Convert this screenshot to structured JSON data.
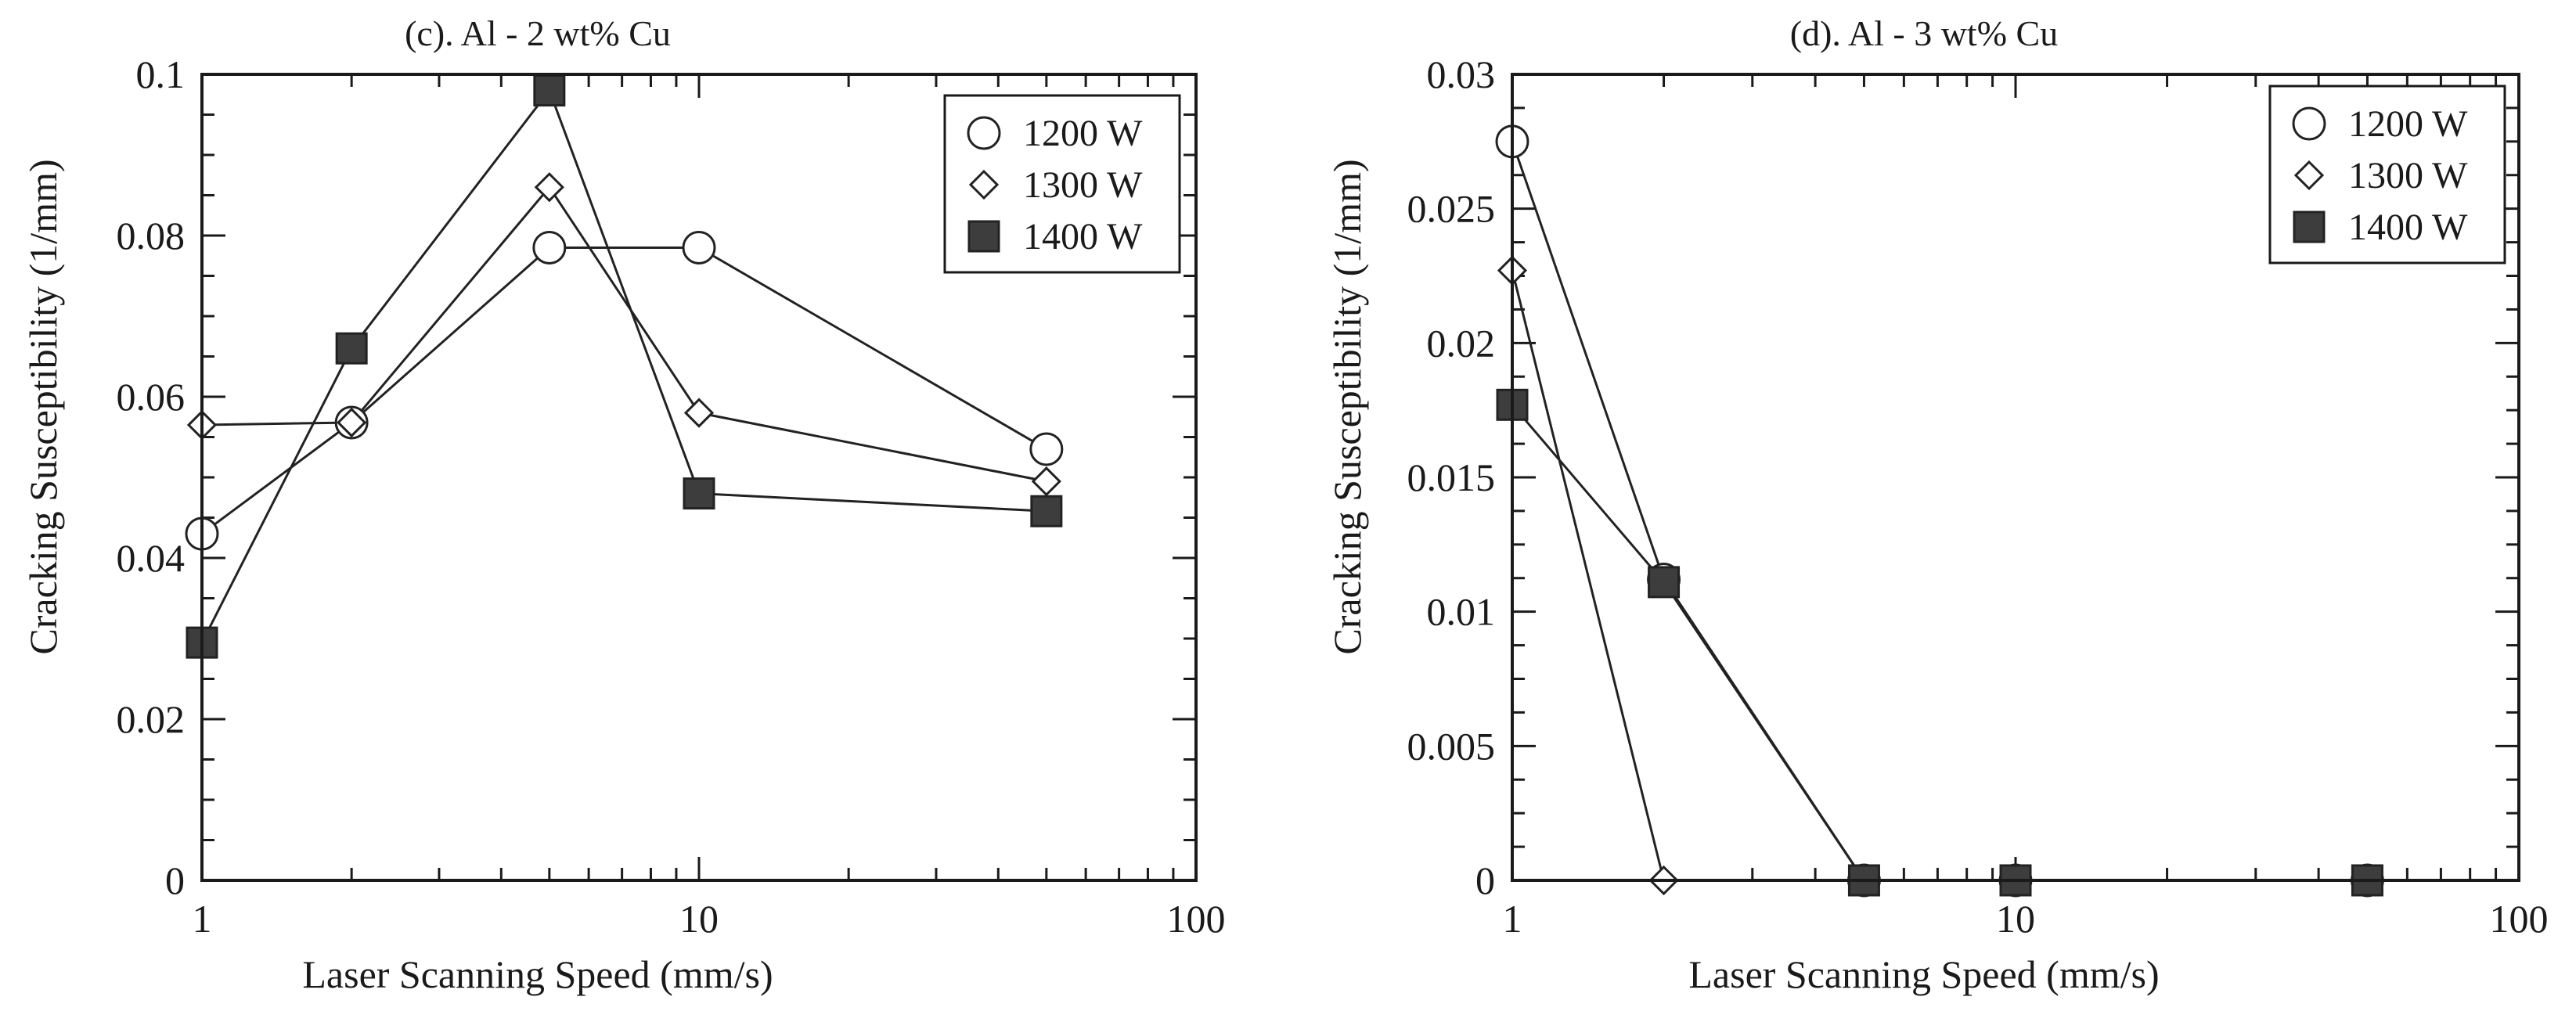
{
  "chart_data": [
    {
      "type": "line",
      "id": "panel-c",
      "title": "(c). Al - 2 wt% Cu",
      "xlabel": "Laser Scanning Speed (mm/s)",
      "ylabel": "Cracking Susceptibility (1/mm)",
      "xscale": "log",
      "xlim": [
        1,
        100
      ],
      "ylim": [
        0,
        0.1
      ],
      "xticks": [
        1,
        10,
        100
      ],
      "xtick_labels": [
        "1",
        "10",
        "100"
      ],
      "yticks": [
        0,
        0.02,
        0.04,
        0.06,
        0.08,
        0.1
      ],
      "ytick_labels": [
        "0",
        "0.02",
        "0.04",
        "0.06",
        "0.08",
        "0.1"
      ],
      "ystep_minor": 0.005,
      "legend_position": "top-right",
      "series": [
        {
          "name": "1200 W",
          "marker": "circle",
          "x": [
            1,
            2,
            5,
            10,
            50
          ],
          "y": [
            0.043,
            0.0568,
            0.0785,
            0.0785,
            0.0535
          ]
        },
        {
          "name": "1300 W",
          "marker": "diamond",
          "x": [
            1,
            2,
            5,
            10,
            50
          ],
          "y": [
            0.0565,
            0.0568,
            0.086,
            0.058,
            0.0495
          ]
        },
        {
          "name": "1400 W",
          "marker": "square",
          "x": [
            1,
            2,
            5,
            10,
            50
          ],
          "y": [
            0.0295,
            0.066,
            0.098,
            0.048,
            0.0458
          ]
        }
      ]
    },
    {
      "type": "line",
      "id": "panel-d",
      "title": "(d). Al - 3 wt% Cu",
      "xlabel": "Laser Scanning Speed (mm/s)",
      "ylabel": "Cracking Susceptibility (1/mm)",
      "xscale": "log",
      "xlim": [
        1,
        100
      ],
      "ylim": [
        0,
        0.03
      ],
      "xticks": [
        1,
        10,
        100
      ],
      "xtick_labels": [
        "1",
        "10",
        "100"
      ],
      "yticks": [
        0,
        0.005,
        0.01,
        0.015,
        0.02,
        0.025,
        0.03
      ],
      "ytick_labels": [
        "0",
        "0.005",
        "0.01",
        "0.015",
        "0.02",
        "0.025",
        "0.03"
      ],
      "ystep_minor": 0.00125,
      "legend_position": "top-right",
      "series": [
        {
          "name": "1200 W",
          "marker": "circle",
          "x": [
            1,
            2,
            5,
            10,
            50
          ],
          "y": [
            0.0275,
            0.0112,
            0,
            0,
            0
          ]
        },
        {
          "name": "1300 W",
          "marker": "diamond",
          "x": [
            1,
            2,
            5,
            10,
            50
          ],
          "y": [
            0.0227,
            0,
            0,
            0,
            0
          ]
        },
        {
          "name": "1400 W",
          "marker": "square",
          "x": [
            1,
            2,
            5,
            10,
            50
          ],
          "y": [
            0.0177,
            0.0111,
            0,
            0,
            0
          ]
        }
      ]
    }
  ],
  "style": {
    "axis_color": "#1a1a1a",
    "square_fill": "#3d3d3d",
    "open_fill": "#ffffff",
    "line_color": "#222222"
  }
}
